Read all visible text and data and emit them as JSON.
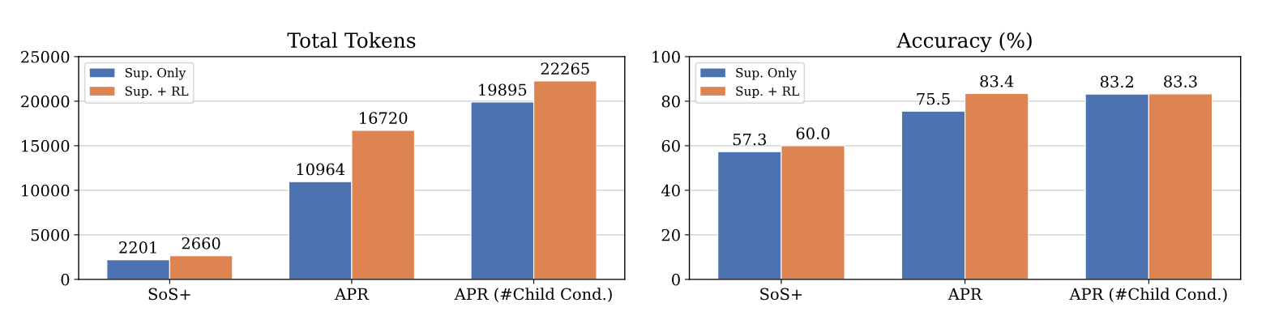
{
  "chart_data": [
    {
      "type": "bar",
      "title": "Total Tokens",
      "categories": [
        "SoS+",
        "APR",
        "APR (#Child Cond.)"
      ],
      "ylim": [
        0,
        25000
      ],
      "yticks": [
        0,
        5000,
        10000,
        15000,
        20000,
        25000
      ],
      "grid": "y",
      "legend": "top left",
      "series": [
        {
          "name": "Sup. Only",
          "color": "#4c72b0",
          "values": [
            2201,
            10964,
            19895
          ],
          "value_labels": [
            "2201",
            "10964",
            "19895"
          ]
        },
        {
          "name": "Sup. + RL",
          "color": "#dd8452",
          "values": [
            2660,
            16720,
            22265
          ],
          "value_labels": [
            "2660",
            "16720",
            "22265"
          ]
        }
      ]
    },
    {
      "type": "bar",
      "title": "Accuracy (%)",
      "categories": [
        "SoS+",
        "APR",
        "APR (#Child Cond.)"
      ],
      "ylim": [
        0,
        100
      ],
      "yticks": [
        0,
        20,
        40,
        60,
        80,
        100
      ],
      "grid": "y",
      "legend": "top left",
      "series": [
        {
          "name": "Sup. Only",
          "color": "#4c72b0",
          "values": [
            57.3,
            75.5,
            83.2
          ],
          "value_labels": [
            "57.3",
            "75.5",
            "83.2"
          ]
        },
        {
          "name": "Sup. + RL",
          "color": "#dd8452",
          "values": [
            60.0,
            83.4,
            83.3
          ],
          "value_labels": [
            "60.0",
            "83.4",
            "83.3"
          ]
        }
      ]
    }
  ]
}
